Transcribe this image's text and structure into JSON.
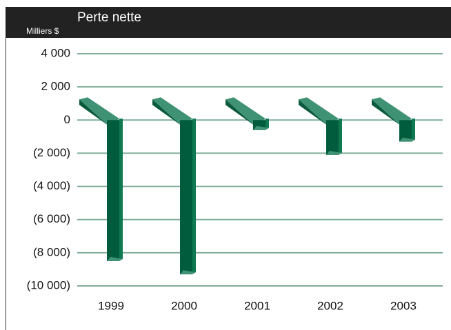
{
  "chart_data": {
    "type": "bar3d",
    "title": "Perte nette",
    "y_axis_label": "Milliers $",
    "categories": [
      "1999",
      "2000",
      "2001",
      "2002",
      "2003"
    ],
    "values": [
      -8500,
      -9300,
      -600,
      -2100,
      -1300
    ],
    "color": "#005c3c",
    "ylim": [
      -10000,
      4000
    ],
    "yticks": [
      {
        "value": 4000,
        "label": "4 000"
      },
      {
        "value": 2000,
        "label": "2 000"
      },
      0,
      {
        "value": -2000,
        "label": "(2 000)"
      },
      {
        "value": -4000,
        "label": "(4 000)"
      },
      {
        "value": -6000,
        "label": "(6 000)"
      },
      {
        "value": -8000,
        "label": "(8 000)"
      },
      {
        "value": -10000,
        "label": "(10 000)"
      }
    ],
    "grid": true
  }
}
